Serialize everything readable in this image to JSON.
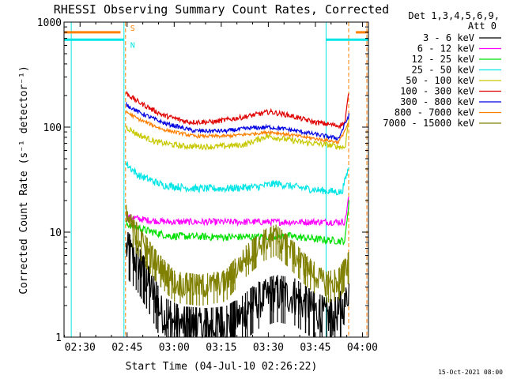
{
  "chart_data": {
    "type": "line",
    "title": "RHESSI Observing Summary Count Rates, Corrected",
    "xlabel": "Start Time (04-Jul-10 02:26:22)",
    "ylabel": "Corrected Count Rate (s⁻¹ detector⁻¹)",
    "x_unit": "minutes after 02:26:22 UT",
    "xlim": [
      -1.5,
      95.5
    ],
    "ylim": [
      1,
      1000
    ],
    "yscale": "log",
    "x_ticks": [
      {
        "t": 3.6,
        "label": "02:30"
      },
      {
        "t": 18.6,
        "label": "02:45"
      },
      {
        "t": 33.6,
        "label": "03:00"
      },
      {
        "t": 48.6,
        "label": "03:15"
      },
      {
        "t": 63.6,
        "label": "03:30"
      },
      {
        "t": 78.6,
        "label": "03:45"
      },
      {
        "t": 93.6,
        "label": "04:00"
      }
    ],
    "y_ticks": [
      {
        "v": 1,
        "label": "1"
      },
      {
        "v": 10,
        "label": "10"
      },
      {
        "v": 100,
        "label": "100"
      },
      {
        "v": 1000,
        "label": "1000"
      }
    ],
    "legend": {
      "header1": "Det 1,3,4,5,6,9,",
      "header2": "Att 0",
      "placement": "right"
    },
    "markers": {
      "saa_label": "S",
      "night_label": "N",
      "saa_color": "#ff8000",
      "night_color": "#00e5e5",
      "saa_level": 800,
      "night_level": 680,
      "saa_spans": [
        [
          -1.5,
          16.5
        ],
        [
          91.5,
          95.5
        ]
      ],
      "night_spans": [
        [
          -1.5,
          17.6
        ],
        [
          82.0,
          95.5
        ]
      ],
      "vlines": [
        {
          "t": 0.8,
          "color": "#00e5e5"
        },
        {
          "t": 17.6,
          "color": "#00e5e5"
        },
        {
          "t": 18.1,
          "color": "#ff8000"
        },
        {
          "t": 82.0,
          "color": "#00e5e5"
        },
        {
          "t": 89.2,
          "color": "#ff8000"
        },
        {
          "t": 95.0,
          "color": "#ff8000"
        }
      ]
    },
    "data_span": [
      18.3,
      89.3
    ],
    "series": [
      {
        "name": "3 - 6 keV",
        "color": "#000000",
        "noise": 0.45,
        "dashes": true,
        "points": [
          [
            18.3,
            7
          ],
          [
            22,
            5
          ],
          [
            26,
            3
          ],
          [
            30,
            1.6
          ],
          [
            36,
            1.3
          ],
          [
            44,
            1.25
          ],
          [
            50,
            1.3
          ],
          [
            55,
            1.6
          ],
          [
            60,
            2.2
          ],
          [
            66,
            2.6
          ],
          [
            72,
            2.4
          ],
          [
            78,
            1.8
          ],
          [
            84,
            1.5
          ],
          [
            88,
            2.0
          ],
          [
            89.3,
            3
          ]
        ]
      },
      {
        "name": "6 - 12 keV",
        "color": "#ff00ff",
        "noise": 0.08,
        "points": [
          [
            18.3,
            14
          ],
          [
            25,
            13
          ],
          [
            32,
            12.5
          ],
          [
            45,
            12.5
          ],
          [
            60,
            12.5
          ],
          [
            75,
            12.5
          ],
          [
            88,
            12.5
          ],
          [
            89.3,
            22
          ]
        ]
      },
      {
        "name": "12 - 25 keV",
        "color": "#00e000",
        "noise": 0.09,
        "points": [
          [
            18.3,
            12
          ],
          [
            24,
            10.5
          ],
          [
            32,
            9.2
          ],
          [
            45,
            9
          ],
          [
            60,
            9
          ],
          [
            70,
            9.2
          ],
          [
            80,
            8.5
          ],
          [
            88,
            8.2
          ],
          [
            89.3,
            20
          ]
        ]
      },
      {
        "name": "25 - 50 keV",
        "color": "#00e5e5",
        "noise": 0.09,
        "points": [
          [
            18.3,
            45
          ],
          [
            22,
            35
          ],
          [
            30,
            28
          ],
          [
            40,
            26
          ],
          [
            50,
            26
          ],
          [
            60,
            27
          ],
          [
            66,
            29
          ],
          [
            72,
            27
          ],
          [
            80,
            25
          ],
          [
            87,
            24
          ],
          [
            89.3,
            42
          ]
        ]
      },
      {
        "name": "50 - 100 keV",
        "color": "#c8c800",
        "noise": 0.07,
        "points": [
          [
            18.3,
            100
          ],
          [
            22,
            85
          ],
          [
            28,
            72
          ],
          [
            36,
            66
          ],
          [
            46,
            65
          ],
          [
            56,
            68
          ],
          [
            63,
            82
          ],
          [
            68,
            78
          ],
          [
            74,
            72
          ],
          [
            82,
            68
          ],
          [
            88,
            64
          ],
          [
            89.3,
            120
          ]
        ]
      },
      {
        "name": "100 - 300 keV",
        "color": "#e00000",
        "noise": 0.06,
        "points": [
          [
            18.3,
            210
          ],
          [
            22,
            175
          ],
          [
            30,
            130
          ],
          [
            38,
            112
          ],
          [
            46,
            112
          ],
          [
            56,
            125
          ],
          [
            64,
            140
          ],
          [
            70,
            130
          ],
          [
            78,
            112
          ],
          [
            86,
            103
          ],
          [
            88,
            110
          ],
          [
            89.3,
            220
          ]
        ]
      },
      {
        "name": "300 - 800 keV",
        "color": "#0000e0",
        "noise": 0.05,
        "points": [
          [
            18.3,
            165
          ],
          [
            22,
            140
          ],
          [
            30,
            110
          ],
          [
            40,
            92
          ],
          [
            50,
            92
          ],
          [
            58,
            98
          ],
          [
            64,
            100
          ],
          [
            70,
            95
          ],
          [
            78,
            86
          ],
          [
            86,
            78
          ],
          [
            89.3,
            130
          ]
        ]
      },
      {
        "name": "800 - 7000 keV",
        "color": "#ff8000",
        "noise": 0.04,
        "points": [
          [
            18.3,
            140
          ],
          [
            22,
            120
          ],
          [
            30,
            95
          ],
          [
            40,
            82
          ],
          [
            50,
            82
          ],
          [
            58,
            86
          ],
          [
            64,
            90
          ],
          [
            70,
            85
          ],
          [
            78,
            78
          ],
          [
            86,
            72
          ],
          [
            89.3,
            110
          ]
        ]
      },
      {
        "name": "7000 - 15000 keV",
        "color": "#808000",
        "noise": 0.3,
        "dashes": true,
        "points": [
          [
            18.3,
            14
          ],
          [
            22,
            9
          ],
          [
            28,
            5
          ],
          [
            34,
            3.2
          ],
          [
            42,
            3
          ],
          [
            50,
            3.3
          ],
          [
            56,
            5.5
          ],
          [
            62,
            8
          ],
          [
            66,
            9
          ],
          [
            70,
            7
          ],
          [
            76,
            4.5
          ],
          [
            82,
            3.2
          ],
          [
            86,
            3.4
          ],
          [
            89.3,
            5
          ]
        ]
      }
    ]
  },
  "footer": {
    "timestamp": "15-Oct-2021 08:00"
  }
}
